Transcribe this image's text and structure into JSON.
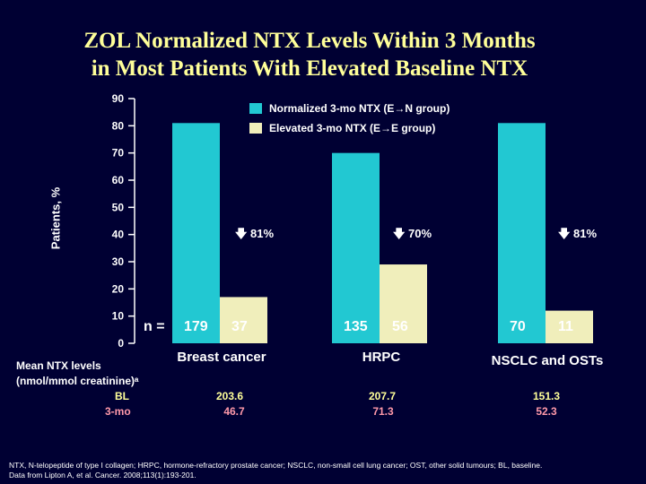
{
  "title_line1": "ZOL Normalized NTX Levels Within 3 Months",
  "title_line2": "in Most Patients With Elevated Baseline NTX",
  "colors": {
    "normalized": "#22c8d2",
    "elevated": "#f0eebb",
    "background": "#000033",
    "title": "#ffff99",
    "bl": "#ffff99",
    "mo3": "#ff99aa"
  },
  "chart_data": {
    "type": "bar",
    "categories": [
      "Breast cancer",
      "HRPC",
      "NSCLC and OSTs"
    ],
    "ylabel": "Patients, %",
    "ylim": [
      0,
      90
    ],
    "yticks": [
      "0",
      "10",
      "20",
      "30",
      "40",
      "50",
      "60",
      "70",
      "80",
      "90"
    ],
    "series": [
      {
        "name": "Normalized 3-mo NTX (E→N group)",
        "values": [
          81,
          70,
          81
        ],
        "n": [
          "179",
          "135",
          "70"
        ]
      },
      {
        "name": "Elevated 3-mo NTX (E→E group)",
        "values": [
          17,
          29,
          12
        ],
        "n": [
          "37",
          "56",
          "11"
        ]
      }
    ],
    "annotations": [
      "81%",
      "70%",
      "81%"
    ]
  },
  "n_prefix": "n =",
  "mean_label_line1": "Mean NTX levels",
  "mean_label_line2": "(nmol/mmol creatinine)ᵃ",
  "bl_label": "BL",
  "mo3_label": "3-mo",
  "bl_values": [
    "203.6",
    "207.7",
    "151.3"
  ],
  "mo3_values": [
    "46.7",
    "71.3",
    "52.3"
  ],
  "footnote_line1": "NTX, N-telopeptide of type I collagen; HRPC, hormone-refractory prostate cancer; NSCLC, non-small cell lung cancer; OST, other solid tumours; BL, baseline.",
  "footnote_line2": "Data from Lipton A, et al. Cancer. 2008;113(1):193-201."
}
